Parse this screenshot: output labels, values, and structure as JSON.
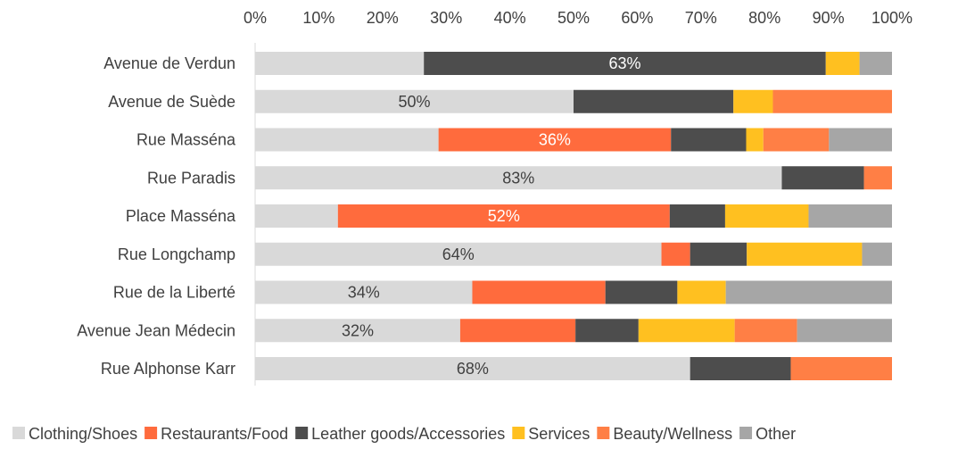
{
  "chart_data": {
    "type": "bar",
    "orientation": "horizontal",
    "stacked": "percent",
    "title": "",
    "xlabel": "",
    "ylabel": "",
    "xlim": [
      0,
      100
    ],
    "x_ticks": [
      "0%",
      "10%",
      "20%",
      "30%",
      "40%",
      "50%",
      "60%",
      "70%",
      "80%",
      "90%",
      "100%"
    ],
    "axis_position": "top",
    "grid": false,
    "legend_position": "bottom",
    "categories": [
      "Avenue de Verdun",
      "Avenue de Suède",
      "Rue Masséna",
      "Rue Paradis",
      "Place Masséna",
      "Rue Longchamp",
      "Rue de la Liberté",
      "Avenue Jean Médecin",
      "Rue Alphonse Karr"
    ],
    "series": [
      {
        "name": "Clothing/Shoes",
        "color": "#d9d9d9",
        "values": [
          26.5,
          50,
          28.8,
          82.7,
          13,
          63.8,
          34.1,
          32.2,
          68.3
        ]
      },
      {
        "name": "Restaurants/Food",
        "color": "#ff6b3d",
        "values": [
          0,
          0,
          36.5,
          0,
          52.1,
          4.5,
          20.9,
          18.1,
          0
        ]
      },
      {
        "name": "Leather goods/Accessories",
        "color": "#4d4d4d",
        "values": [
          63.1,
          25.1,
          11.8,
          12.9,
          8.7,
          8.9,
          11.3,
          9.9,
          15.8
        ]
      },
      {
        "name": "Services",
        "color": "#ffc020",
        "values": [
          5.3,
          6.2,
          2.7,
          0,
          13.1,
          18.1,
          7.6,
          15.1,
          0
        ]
      },
      {
        "name": "Beauty/Wellness",
        "color": "#ff7f45",
        "values": [
          0,
          18.7,
          10.3,
          4.4,
          0,
          0,
          0,
          9.8,
          15.9
        ]
      },
      {
        "name": "Other",
        "color": "#a6a6a6",
        "values": [
          5.1,
          0,
          9.9,
          0,
          13.1,
          4.7,
          26.1,
          14.9,
          0
        ]
      }
    ],
    "data_labels": [
      {
        "category": "Avenue de Verdun",
        "series": "Leather goods/Accessories",
        "text": "63%",
        "color": "#ffffff"
      },
      {
        "category": "Avenue de Suède",
        "series": "Clothing/Shoes",
        "text": "50%",
        "color": "#404040"
      },
      {
        "category": "Rue Masséna",
        "series": "Restaurants/Food",
        "text": "36%",
        "color": "#ffffff"
      },
      {
        "category": "Rue Paradis",
        "series": "Clothing/Shoes",
        "text": "83%",
        "color": "#404040"
      },
      {
        "category": "Place Masséna",
        "series": "Restaurants/Food",
        "text": "52%",
        "color": "#ffffff"
      },
      {
        "category": "Rue Longchamp",
        "series": "Clothing/Shoes",
        "text": "64%",
        "color": "#404040"
      },
      {
        "category": "Rue de la Liberté",
        "series": "Clothing/Shoes",
        "text": "34%",
        "color": "#404040"
      },
      {
        "category": "Avenue Jean Médecin",
        "series": "Clothing/Shoes",
        "text": "32%",
        "color": "#404040"
      },
      {
        "category": "Rue Alphonse Karr",
        "series": "Clothing/Shoes",
        "text": "68%",
        "color": "#404040"
      }
    ]
  }
}
